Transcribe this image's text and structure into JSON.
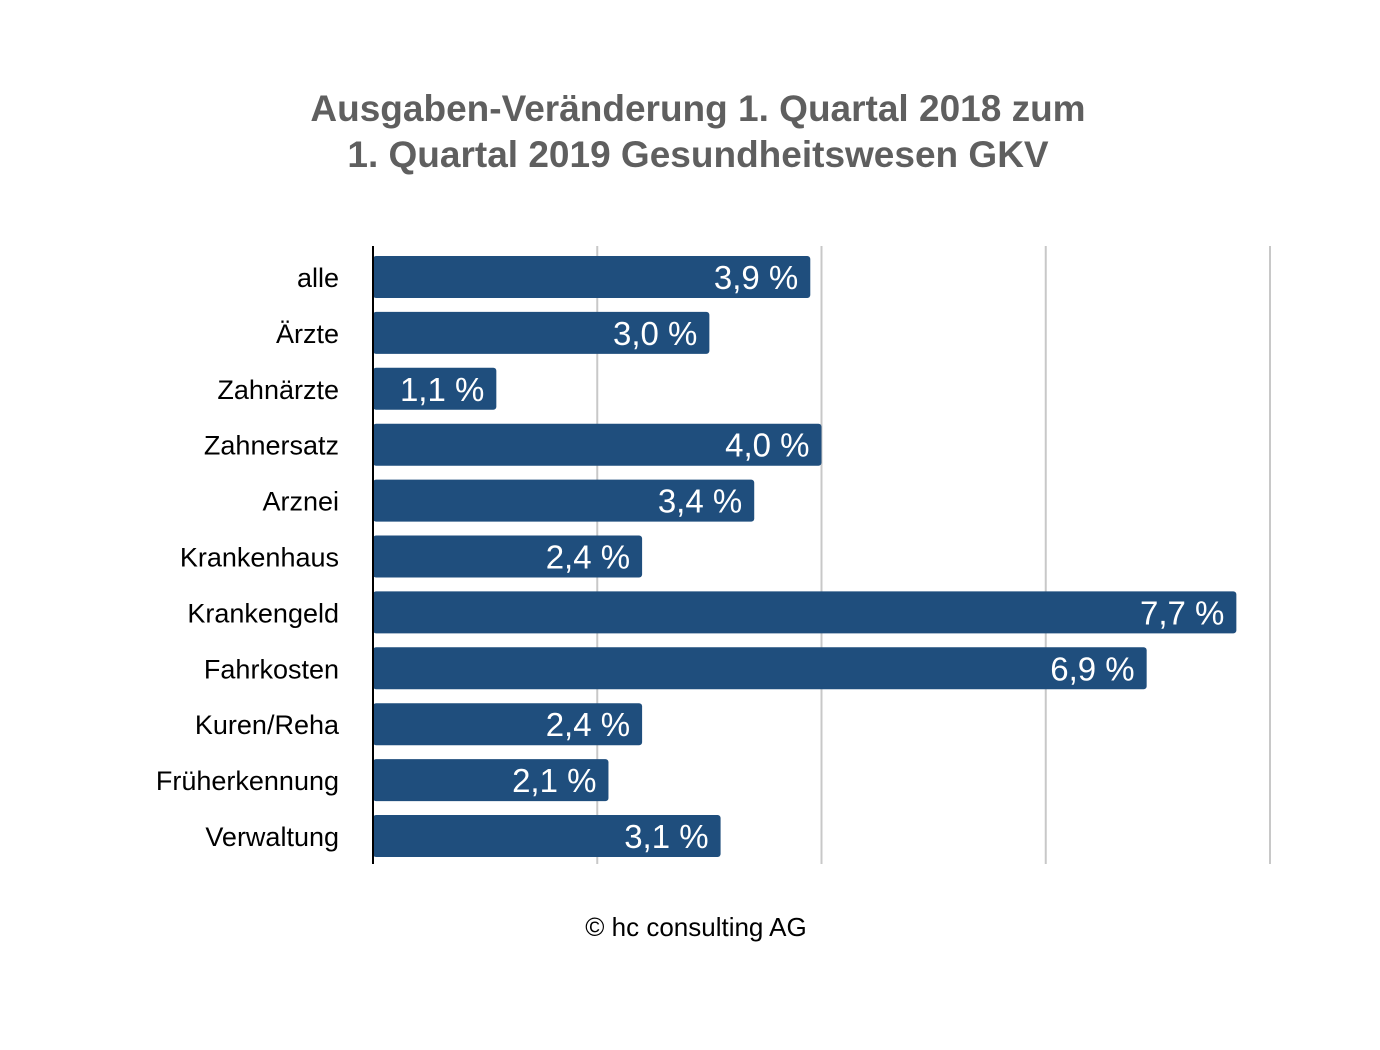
{
  "chart_data": {
    "type": "bar",
    "orientation": "horizontal",
    "title_lines": [
      "Ausgaben-Veränderung 1. Quartal 2018 zum",
      "1. Quartal 2019 Gesundheitswesen GKV"
    ],
    "categories": [
      "alle",
      "Ärzte",
      "Zahnärzte",
      "Zahnersatz",
      "Arznei",
      "Krankenhaus",
      "Krankengeld",
      "Fahrkosten",
      "Kuren/Reha",
      "Früherkennung",
      "Verwaltung"
    ],
    "values": [
      3.9,
      3.0,
      1.1,
      4.0,
      3.4,
      2.4,
      7.7,
      6.9,
      2.4,
      2.1,
      3.1
    ],
    "value_labels": [
      "3,9 %",
      "3,0 %",
      "1,1 %",
      "4,0 %",
      "3,4 %",
      "2,4 %",
      "7,7 %",
      "6,9 %",
      "2,4 %",
      "2,1 %",
      "3,1 %"
    ],
    "xlim": [
      0,
      8
    ],
    "gridlines_at": [
      0,
      2,
      4,
      6,
      8
    ],
    "x_tick_labels_shown": false,
    "grid": true,
    "legend": "none",
    "bar_color": "#1f4e7d",
    "grid_color": "#c8c8c8"
  },
  "footer": {
    "copyright": "© hc consulting AG"
  }
}
